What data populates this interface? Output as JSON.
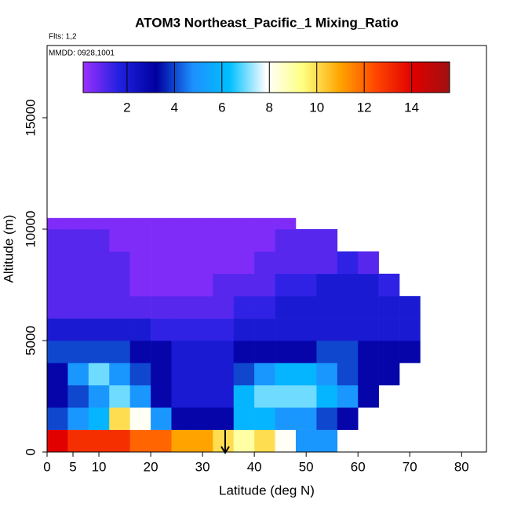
{
  "chart_data": {
    "type": "heatmap",
    "title": "ATOM3 Northeast_Pacific_1 Mixing_Ratio",
    "flights": "Flts: 1,2",
    "dates": "MMDD: 0928,1001",
    "xlabel": "Latitude (deg N)",
    "ylabel": "Altitude (m)",
    "xlim": [
      0,
      84.8
    ],
    "xticks": [
      0,
      5,
      10,
      20,
      30,
      40,
      50,
      60,
      70,
      80
    ],
    "ylim": [
      0,
      18240
    ],
    "yticks": [
      0,
      5000,
      10000,
      15000
    ],
    "x_edges": [
      0,
      4,
      8,
      12,
      16,
      20,
      24,
      28,
      32,
      36,
      40,
      44,
      48,
      52,
      56,
      60,
      64,
      68,
      72
    ],
    "y_edges": [
      0,
      1000,
      2000,
      3000,
      4000,
      5000,
      6000,
      7000,
      8000,
      9000,
      10000,
      10500
    ],
    "values": [
      [
        14,
        13,
        13,
        13,
        12,
        12,
        11,
        11,
        10,
        9,
        10,
        8,
        5,
        5,
        null,
        null,
        null,
        null
      ],
      [
        4,
        5,
        6,
        10,
        8,
        5,
        3,
        3,
        3,
        6,
        6,
        5,
        5,
        4,
        3,
        null,
        null,
        null
      ],
      [
        3,
        4,
        5,
        7,
        5,
        3,
        2,
        2,
        2,
        6,
        7,
        7,
        7,
        6,
        5,
        3,
        null,
        null
      ],
      [
        3,
        5,
        7,
        5,
        4,
        3,
        2,
        2,
        2,
        4,
        5,
        6,
        6,
        5,
        4,
        3,
        3,
        null
      ],
      [
        4,
        4,
        4,
        4,
        3,
        3,
        2,
        2,
        2,
        3,
        3,
        3,
        3,
        4,
        4,
        3,
        3,
        3
      ],
      [
        2,
        2,
        2,
        2,
        2,
        1.5,
        1.5,
        1.5,
        1.5,
        2,
        2,
        2,
        2,
        2,
        2,
        2,
        2,
        2
      ],
      [
        1,
        1,
        1,
        1,
        1,
        1,
        1,
        1,
        1,
        1.5,
        1.5,
        2,
        2,
        2,
        2,
        2,
        2,
        2
      ],
      [
        1,
        1,
        1,
        1,
        0.5,
        0.5,
        0.5,
        0.5,
        1,
        1,
        1,
        1.5,
        1.5,
        2,
        2,
        2,
        1.5,
        null
      ],
      [
        1,
        1,
        1,
        1,
        0.5,
        0.5,
        0.5,
        0.5,
        0.5,
        0.5,
        1,
        1,
        1,
        1,
        1.5,
        1,
        null,
        null
      ],
      [
        1,
        1,
        1,
        0.5,
        0.5,
        0.5,
        0.5,
        0.5,
        0.5,
        0.5,
        0.5,
        1,
        1,
        1,
        null,
        null,
        null,
        null
      ],
      [
        0.5,
        0.5,
        0.5,
        0.5,
        0.5,
        0.5,
        0.5,
        0.5,
        0.5,
        0.5,
        0.5,
        0.5,
        null,
        null,
        null,
        null,
        null,
        null
      ]
    ],
    "colorbar_lim": [
      0.15,
      15.6
    ],
    "colorbar_ticks": [
      2,
      4,
      6,
      8,
      10,
      12,
      14
    ],
    "colors": [
      "#9b30ff",
      "#2020e0",
      "#0000a0",
      "#1e90ff",
      "#00bfff",
      "#ffffff",
      "#ffff80",
      "#ffa500",
      "#ff4500",
      "#e00000",
      "#a01010"
    ]
  }
}
